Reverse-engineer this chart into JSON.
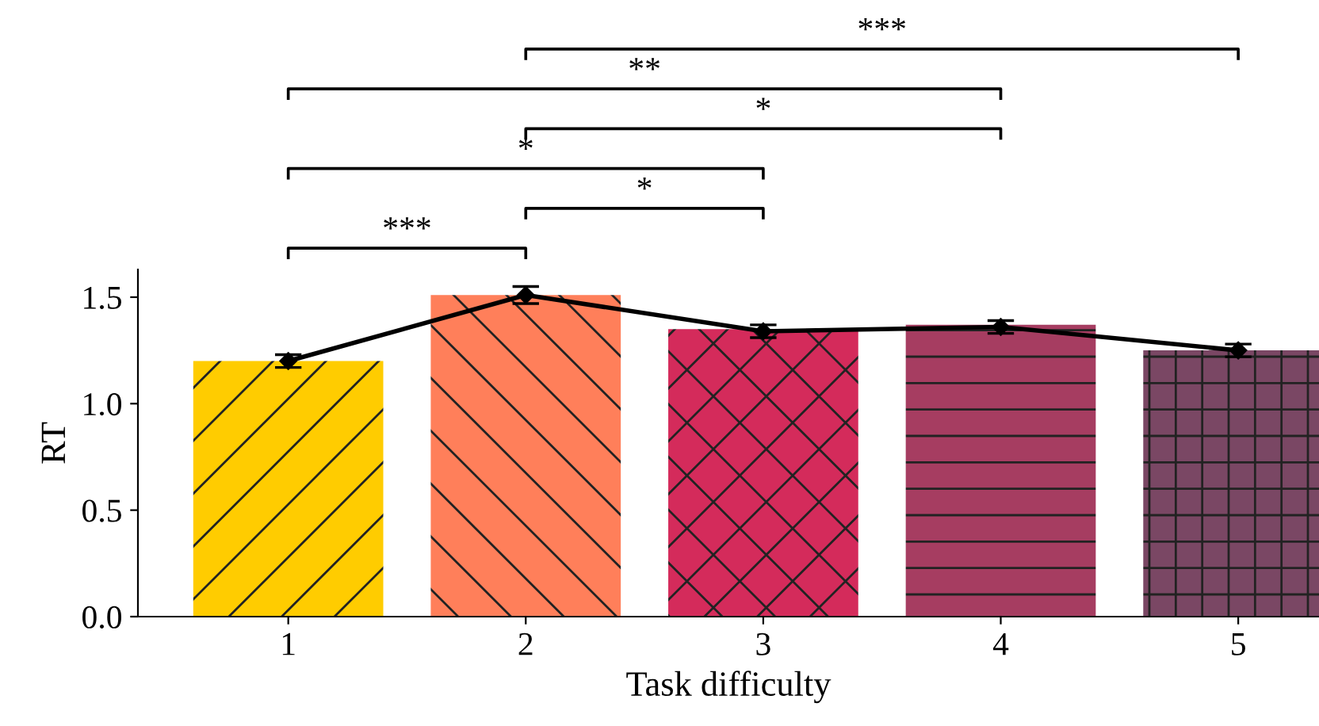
{
  "chart_data": {
    "type": "bar",
    "xlabel": "Task difficulty",
    "ylabel": "RT",
    "categories": [
      "1",
      "2",
      "3",
      "4",
      "5"
    ],
    "series": [
      {
        "colors": [
          "#ffcc00",
          "#ff7f5a",
          "#d42b5b",
          "#a63d61",
          "#7a4764"
        ],
        "values": [
          1.2,
          1.51,
          1.35,
          1.37,
          1.25
        ]
      },
      {
        "type": "line",
        "color": "#000000",
        "values": [
          1.2,
          1.51,
          1.34,
          1.36,
          1.25
        ],
        "errors": [
          0.03,
          0.04,
          0.03,
          0.03,
          0.03
        ]
      }
    ],
    "marker": "diamond",
    "line_style": "solid",
    "ylim": [
      0,
      1.63
    ],
    "yticks": [
      {
        "value": 0,
        "label": "0.0"
      },
      {
        "value": 0.5,
        "label": "0.5"
      },
      {
        "value": 1,
        "label": "1.0"
      },
      {
        "value": 1.5,
        "label": "1.5"
      }
    ],
    "grid": false,
    "legend": false,
    "annotations": [
      "***",
      "*",
      "*",
      "*",
      "**",
      "***"
    ]
  }
}
